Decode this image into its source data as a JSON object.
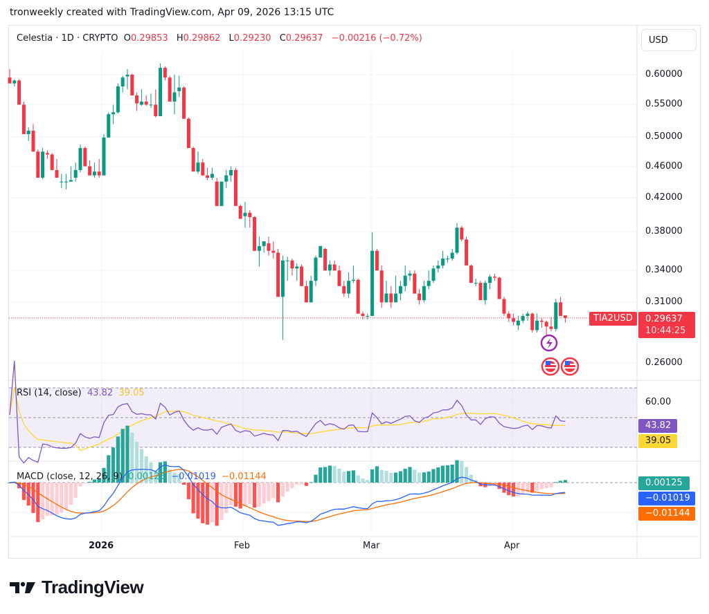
{
  "credit": "tronweekly created with TradingView.com, Apr 09, 2026 13:15 UTC",
  "header": {
    "symbol": "Celestia · 1D · CRYPTO",
    "o_label": "O",
    "o": "0.29853",
    "h_label": "H",
    "h": "0.29862",
    "l_label": "L",
    "l": "0.29230",
    "c_label": "C",
    "c": "0.29637",
    "change": "−0.00216 (−0.72%)"
  },
  "currency_button": "USD",
  "price_axis": [
    "0.60000",
    "0.55000",
    "0.50000",
    "0.46000",
    "0.42000",
    "0.38000",
    "0.34000",
    "0.31000",
    "0.26000"
  ],
  "last_price": {
    "ticker": "TIA2USD",
    "price": "0.29637",
    "countdown": "10:44:25"
  },
  "rsi": {
    "title": "RSI (14, close)",
    "value": "43.82",
    "ma": "39.05",
    "level_label": "60.00"
  },
  "macd": {
    "title": "MACD (close, 12, 26, 9)",
    "hist": "0.00125",
    "macd": "−0.01019",
    "signal": "−0.01144"
  },
  "time_axis": [
    "2026",
    "Feb",
    "Mar",
    "Apr"
  ],
  "logo": "TradingView",
  "colors": {
    "up": "#089981",
    "down": "#f23645",
    "rsi": "#7e57c2",
    "rsi_ma": "#fdd835",
    "macd": "#2962ff",
    "signal": "#ff6d00",
    "hist_up": "#26a69a",
    "hist_up_light": "#b2dfdb",
    "hist_down": "#ff5252",
    "hist_down_light": "#ffcdd2"
  },
  "chart_data": {
    "type": "candlestick",
    "title": "Celestia · 1D · CRYPTO (TIA2USD)",
    "ylabel": "USD",
    "yscale": "log",
    "ylim": [
      0.245,
      0.625
    ],
    "x_ticks": [
      "2026",
      "Feb",
      "Mar",
      "Apr"
    ],
    "candles": [
      [
        0.595,
        0.61,
        0.585,
        0.585
      ],
      [
        0.585,
        0.592,
        0.58,
        0.59
      ],
      [
        0.59,
        0.592,
        0.55,
        0.55
      ],
      [
        0.55,
        0.555,
        0.505,
        0.505
      ],
      [
        0.505,
        0.515,
        0.495,
        0.51
      ],
      [
        0.51,
        0.52,
        0.48,
        0.48
      ],
      [
        0.48,
        0.483,
        0.445,
        0.445
      ],
      [
        0.445,
        0.485,
        0.443,
        0.48
      ],
      [
        0.478,
        0.482,
        0.47,
        0.476
      ],
      [
        0.476,
        0.478,
        0.455,
        0.455
      ],
      [
        0.455,
        0.47,
        0.445,
        0.445
      ],
      [
        0.44,
        0.45,
        0.432,
        0.44
      ],
      [
        0.44,
        0.45,
        0.43,
        0.44
      ],
      [
        0.44,
        0.46,
        0.44,
        0.442
      ],
      [
        0.445,
        0.465,
        0.44,
        0.455
      ],
      [
        0.455,
        0.49,
        0.452,
        0.485
      ],
      [
        0.485,
        0.487,
        0.46,
        0.46
      ],
      [
        0.46,
        0.468,
        0.448,
        0.448
      ],
      [
        0.448,
        0.465,
        0.445,
        0.453
      ],
      [
        0.453,
        0.47,
        0.445,
        0.448
      ],
      [
        0.448,
        0.505,
        0.448,
        0.5
      ],
      [
        0.5,
        0.538,
        0.5,
        0.535
      ],
      [
        0.535,
        0.55,
        0.52,
        0.538
      ],
      [
        0.538,
        0.585,
        0.536,
        0.58
      ],
      [
        0.58,
        0.598,
        0.57,
        0.595
      ],
      [
        0.597,
        0.61,
        0.575,
        0.6
      ],
      [
        0.6,
        0.602,
        0.565,
        0.565
      ],
      [
        0.565,
        0.57,
        0.54,
        0.552
      ],
      [
        0.55,
        0.575,
        0.548,
        0.555
      ],
      [
        0.555,
        0.565,
        0.548,
        0.55
      ],
      [
        0.55,
        0.568,
        0.545,
        0.55
      ],
      [
        0.55,
        0.575,
        0.53,
        0.532
      ],
      [
        0.532,
        0.62,
        0.532,
        0.612
      ],
      [
        0.612,
        0.615,
        0.59,
        0.595
      ],
      [
        0.595,
        0.598,
        0.555,
        0.555
      ],
      [
        0.555,
        0.6,
        0.535,
        0.57
      ],
      [
        0.572,
        0.598,
        0.562,
        0.578
      ],
      [
        0.578,
        0.58,
        0.528,
        0.528
      ],
      [
        0.528,
        0.53,
        0.485,
        0.485
      ],
      [
        0.485,
        0.487,
        0.453,
        0.453
      ],
      [
        0.453,
        0.48,
        0.45,
        0.465
      ],
      [
        0.465,
        0.47,
        0.448,
        0.448
      ],
      [
        0.448,
        0.458,
        0.442,
        0.445
      ],
      [
        0.445,
        0.458,
        0.442,
        0.45
      ],
      [
        0.44,
        0.445,
        0.41,
        0.41
      ],
      [
        0.41,
        0.44,
        0.41,
        0.44
      ],
      [
        0.44,
        0.455,
        0.432,
        0.448
      ],
      [
        0.448,
        0.46,
        0.44,
        0.455
      ],
      [
        0.455,
        0.458,
        0.41,
        0.41
      ],
      [
        0.41,
        0.412,
        0.395,
        0.395
      ],
      [
        0.398,
        0.415,
        0.385,
        0.402
      ],
      [
        0.402,
        0.405,
        0.385,
        0.397
      ],
      [
        0.397,
        0.398,
        0.36,
        0.36
      ],
      [
        0.36,
        0.375,
        0.344,
        0.365
      ],
      [
        0.365,
        0.37,
        0.358,
        0.37
      ],
      [
        0.368,
        0.375,
        0.355,
        0.36
      ],
      [
        0.36,
        0.37,
        0.352,
        0.358
      ],
      [
        0.358,
        0.362,
        0.315,
        0.315
      ],
      [
        0.315,
        0.355,
        0.278,
        0.35
      ],
      [
        0.35,
        0.354,
        0.33,
        0.35
      ],
      [
        0.35,
        0.352,
        0.335,
        0.342
      ],
      [
        0.342,
        0.347,
        0.33,
        0.344
      ],
      [
        0.344,
        0.346,
        0.325,
        0.325
      ],
      [
        0.325,
        0.33,
        0.31,
        0.31
      ],
      [
        0.31,
        0.335,
        0.31,
        0.33
      ],
      [
        0.33,
        0.355,
        0.325,
        0.353
      ],
      [
        0.353,
        0.365,
        0.353,
        0.365
      ],
      [
        0.362,
        0.363,
        0.34,
        0.34
      ],
      [
        0.34,
        0.35,
        0.335,
        0.346
      ],
      [
        0.346,
        0.35,
        0.34,
        0.34
      ],
      [
        0.34,
        0.345,
        0.325,
        0.325
      ],
      [
        0.325,
        0.33,
        0.315,
        0.318
      ],
      [
        0.318,
        0.338,
        0.314,
        0.33
      ],
      [
        0.33,
        0.345,
        0.328,
        0.331
      ],
      [
        0.331,
        0.332,
        0.3,
        0.3
      ],
      [
        0.3,
        0.302,
        0.295,
        0.298
      ],
      [
        0.298,
        0.3,
        0.295,
        0.298
      ],
      [
        0.298,
        0.38,
        0.3,
        0.36
      ],
      [
        0.36,
        0.362,
        0.34,
        0.34
      ],
      [
        0.34,
        0.345,
        0.305,
        0.31
      ],
      [
        0.31,
        0.33,
        0.31,
        0.318
      ],
      [
        0.318,
        0.325,
        0.305,
        0.31
      ],
      [
        0.31,
        0.335,
        0.312,
        0.318
      ],
      [
        0.318,
        0.33,
        0.312,
        0.325
      ],
      [
        0.325,
        0.345,
        0.32,
        0.335
      ],
      [
        0.335,
        0.34,
        0.33,
        0.337
      ],
      [
        0.337,
        0.34,
        0.318,
        0.318
      ],
      [
        0.318,
        0.322,
        0.308,
        0.312
      ],
      [
        0.312,
        0.33,
        0.31,
        0.325
      ],
      [
        0.325,
        0.34,
        0.322,
        0.33
      ],
      [
        0.33,
        0.345,
        0.328,
        0.342
      ],
      [
        0.342,
        0.35,
        0.338,
        0.345
      ],
      [
        0.345,
        0.36,
        0.342,
        0.352
      ],
      [
        0.352,
        0.355,
        0.348,
        0.352
      ],
      [
        0.352,
        0.362,
        0.35,
        0.358
      ],
      [
        0.358,
        0.39,
        0.356,
        0.385
      ],
      [
        0.385,
        0.387,
        0.37,
        0.372
      ],
      [
        0.372,
        0.375,
        0.345,
        0.345
      ],
      [
        0.345,
        0.346,
        0.328,
        0.328
      ],
      [
        0.328,
        0.332,
        0.325,
        0.328
      ],
      [
        0.328,
        0.33,
        0.312,
        0.312
      ],
      [
        0.312,
        0.33,
        0.308,
        0.328
      ],
      [
        0.328,
        0.336,
        0.322,
        0.334
      ],
      [
        0.334,
        0.337,
        0.33,
        0.333
      ],
      [
        0.333,
        0.334,
        0.313,
        0.313
      ],
      [
        0.313,
        0.315,
        0.298,
        0.3
      ],
      [
        0.3,
        0.302,
        0.293,
        0.296
      ],
      [
        0.296,
        0.3,
        0.29,
        0.293
      ],
      [
        0.29,
        0.298,
        0.286,
        0.294
      ],
      [
        0.294,
        0.3,
        0.292,
        0.298
      ],
      [
        0.298,
        0.302,
        0.294,
        0.3
      ],
      [
        0.3,
        0.301,
        0.284,
        0.286
      ],
      [
        0.286,
        0.3,
        0.284,
        0.294
      ],
      [
        0.294,
        0.296,
        0.288,
        0.293
      ],
      [
        0.293,
        0.294,
        0.282,
        0.289
      ],
      [
        0.289,
        0.297,
        0.285,
        0.287
      ],
      [
        0.287,
        0.313,
        0.285,
        0.31
      ],
      [
        0.31,
        0.315,
        0.298,
        0.298
      ],
      [
        0.2985,
        0.2986,
        0.2923,
        0.29637
      ]
    ]
  }
}
